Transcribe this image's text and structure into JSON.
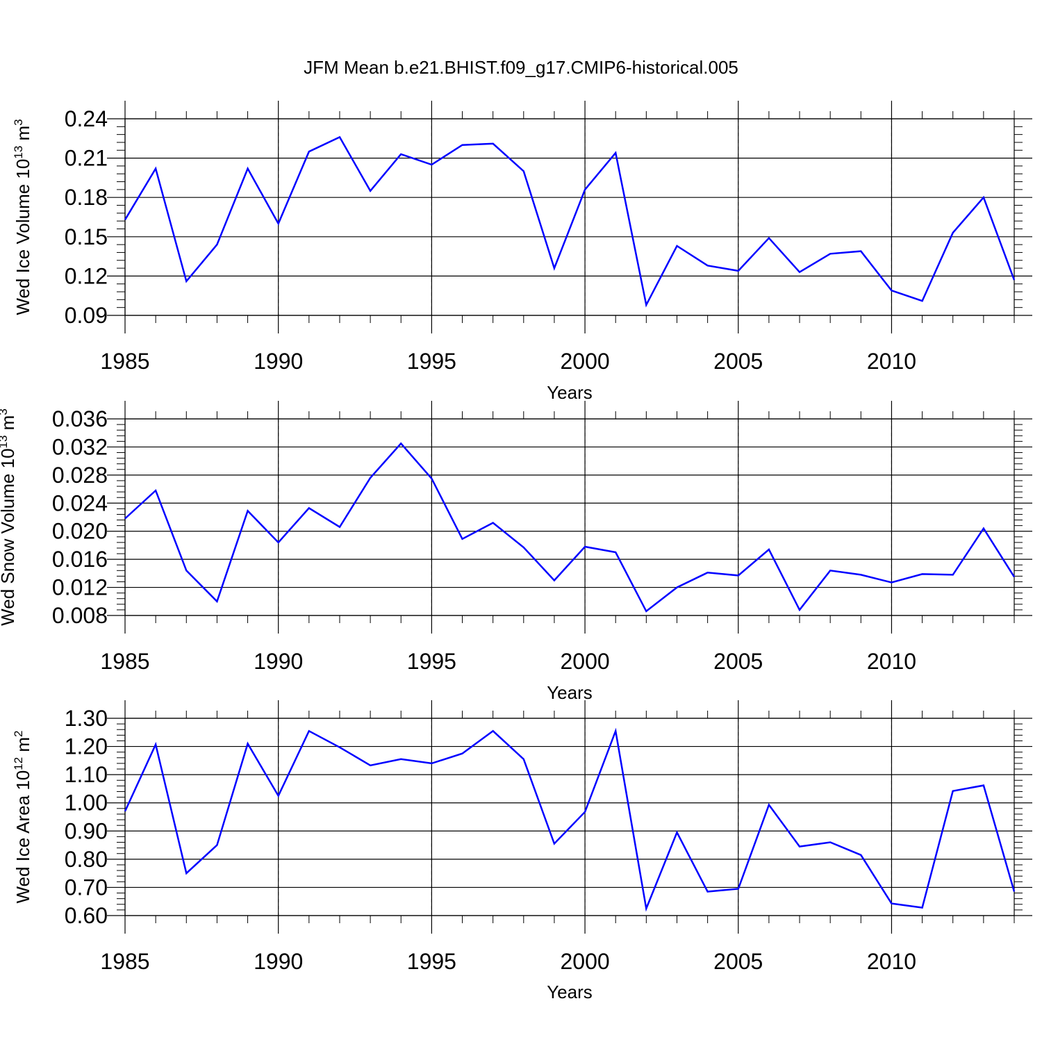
{
  "title": "JFM Mean b.e21.BHIST.f09_g17.CMIP6-historical.005",
  "chart_data": [
    {
      "type": "line",
      "ylabel": "Wed Ice Volume 10",
      "ylabel_exp": "13",
      "ylabel_unit": " m",
      "ylabel_unit_exp": "3",
      "xlabel": "Years",
      "xlim": [
        1985,
        2014
      ],
      "ylim": [
        0.09,
        0.24
      ],
      "yticks": [
        "0.24",
        "0.21",
        "0.18",
        "0.15",
        "0.12",
        "0.09"
      ],
      "xticks": [
        "1985",
        "1990",
        "1995",
        "2000",
        "2005",
        "2010"
      ],
      "grid": "dashed vertical at major x ticks",
      "series": [
        {
          "name": "Wed Ice Volume",
          "color": "#0000ff",
          "x": [
            1985,
            1986,
            1987,
            1988,
            1989,
            1990,
            1991,
            1992,
            1993,
            1994,
            1995,
            1996,
            1997,
            1998,
            1999,
            2000,
            2001,
            2002,
            2003,
            2004,
            2005,
            2006,
            2007,
            2008,
            2009,
            2010,
            2011,
            2012,
            2013,
            2014
          ],
          "values": [
            0.163,
            0.202,
            0.116,
            0.144,
            0.202,
            0.16,
            0.215,
            0.226,
            0.185,
            0.213,
            0.205,
            0.22,
            0.221,
            0.2,
            0.126,
            0.186,
            0.214,
            0.098,
            0.143,
            0.128,
            0.124,
            0.149,
            0.123,
            0.137,
            0.139,
            0.109,
            0.101,
            0.153,
            0.18,
            0.117
          ]
        }
      ]
    },
    {
      "type": "line",
      "ylabel": "Wed Snow Volume 10",
      "ylabel_exp": "13",
      "ylabel_unit": " m",
      "ylabel_unit_exp": "3",
      "xlabel": "Years",
      "xlim": [
        1985,
        2014
      ],
      "ylim": [
        0.008,
        0.036
      ],
      "yticks": [
        "0.036",
        "0.032",
        "0.028",
        "0.024",
        "0.020",
        "0.016",
        "0.012",
        "0.008"
      ],
      "xticks": [
        "1985",
        "1990",
        "1995",
        "2000",
        "2005",
        "2010"
      ],
      "grid": "dashed vertical at major x ticks",
      "series": [
        {
          "name": "Wed Snow Volume",
          "color": "#0000ff",
          "x": [
            1985,
            1986,
            1987,
            1988,
            1989,
            1990,
            1991,
            1992,
            1993,
            1994,
            1995,
            1996,
            1997,
            1998,
            1999,
            2000,
            2001,
            2002,
            2003,
            2004,
            2005,
            2006,
            2007,
            2008,
            2009,
            2010,
            2011,
            2012,
            2013,
            2014
          ],
          "values": [
            0.0218,
            0.0258,
            0.0144,
            0.01,
            0.0229,
            0.0184,
            0.0233,
            0.0206,
            0.0276,
            0.0325,
            0.0275,
            0.0189,
            0.0212,
            0.0177,
            0.013,
            0.0178,
            0.017,
            0.0086,
            0.012,
            0.0141,
            0.0137,
            0.0174,
            0.0088,
            0.0144,
            0.0138,
            0.0127,
            0.0139,
            0.0138,
            0.0204,
            0.0135
          ]
        }
      ]
    },
    {
      "type": "line",
      "ylabel": "Wed Ice Area 10",
      "ylabel_exp": "12",
      "ylabel_unit": " m",
      "ylabel_unit_exp": "2",
      "xlabel": "Years",
      "xlim": [
        1985,
        2014
      ],
      "ylim": [
        0.6,
        1.3
      ],
      "yticks": [
        "1.30",
        "1.20",
        "1.10",
        "1.00",
        "0.90",
        "0.80",
        "0.70",
        "0.60"
      ],
      "xticks": [
        "1985",
        "1990",
        "1995",
        "2000",
        "2005",
        "2010"
      ],
      "grid": "dashed vertical at major x ticks",
      "series": [
        {
          "name": "Wed Ice Area",
          "color": "#0000ff",
          "x": [
            1985,
            1986,
            1987,
            1988,
            1989,
            1990,
            1991,
            1992,
            1993,
            1994,
            1995,
            1996,
            1997,
            1998,
            1999,
            2000,
            2001,
            2002,
            2003,
            2004,
            2005,
            2006,
            2007,
            2008,
            2009,
            2010,
            2011,
            2012,
            2013,
            2014
          ],
          "values": [
            0.97,
            1.207,
            0.75,
            0.85,
            1.21,
            1.025,
            1.255,
            1.197,
            1.133,
            1.155,
            1.14,
            1.175,
            1.255,
            1.155,
            0.855,
            0.968,
            1.255,
            0.625,
            0.895,
            0.685,
            0.695,
            0.993,
            0.845,
            0.86,
            0.815,
            0.643,
            0.628,
            1.042,
            1.062,
            0.685
          ]
        }
      ]
    }
  ]
}
